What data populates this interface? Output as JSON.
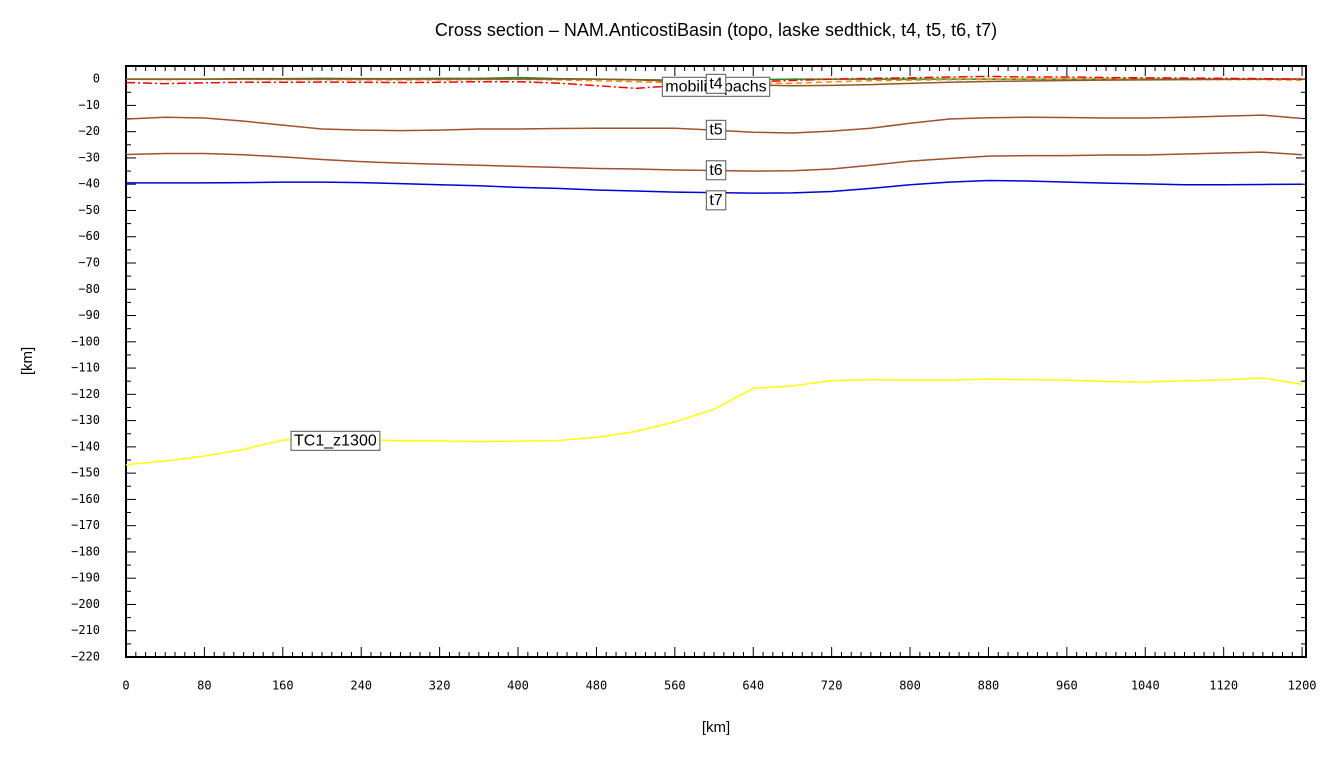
{
  "chart_data": {
    "type": "line",
    "title": "Cross section – NAM.AnticostiBasin (topo, laske sedthick, t4, t5, t6, t7)",
    "xlabel": "[km]",
    "ylabel": "[km]",
    "x": [
      0,
      40,
      80,
      120,
      160,
      200,
      240,
      280,
      320,
      360,
      400,
      440,
      480,
      520,
      560,
      600,
      640,
      680,
      720,
      760,
      800,
      840,
      880,
      920,
      960,
      1000,
      1040,
      1080,
      1120,
      1160,
      1200
    ],
    "xlim": [
      0,
      1204
    ],
    "ylim": [
      -220,
      5
    ],
    "xticks": [
      0,
      80,
      160,
      240,
      320,
      400,
      480,
      560,
      640,
      720,
      800,
      880,
      960,
      1040,
      1120,
      1200
    ],
    "yticks": [
      0,
      {
        "value": -10,
        "label": "−10"
      },
      {
        "value": -20,
        "label": "−20"
      },
      {
        "value": -30,
        "label": "−30"
      },
      {
        "value": -40,
        "label": "−40"
      },
      {
        "value": -50,
        "label": "−50"
      },
      {
        "value": -60,
        "label": "−60"
      },
      {
        "value": -70,
        "label": "−70"
      },
      {
        "value": -80,
        "label": "−80"
      },
      {
        "value": -90,
        "label": "−90"
      },
      {
        "value": -100,
        "label": "−100"
      },
      {
        "value": -110,
        "label": "−110"
      },
      {
        "value": -120,
        "label": "−120"
      },
      {
        "value": -130,
        "label": "−130"
      },
      {
        "value": -140,
        "label": "−140"
      },
      {
        "value": -150,
        "label": "−150"
      },
      {
        "value": -160,
        "label": "−160"
      },
      {
        "value": -170,
        "label": "−170"
      },
      {
        "value": -180,
        "label": "−180"
      },
      {
        "value": -190,
        "label": "−190"
      },
      {
        "value": -200,
        "label": "−200"
      },
      {
        "value": -210,
        "label": "−210"
      },
      {
        "value": -220,
        "label": "−220"
      }
    ],
    "series": [
      {
        "color": "#228b22",
        "values": [
          0,
          0,
          0,
          0.2,
          0.2,
          0.3,
          0.2,
          0.2,
          0.3,
          0.3,
          0.6,
          0.2,
          0,
          -0.2,
          -0.4,
          -0.4,
          -0.2,
          0,
          0,
          0,
          0,
          0,
          0,
          0,
          0,
          0,
          0,
          0,
          0,
          0,
          0
        ]
      },
      {
        "color": "#ff8c00",
        "dash": "6,4",
        "values": [
          0,
          -0.2,
          0,
          -0.1,
          -0.2,
          -0.2,
          -0.3,
          -0.3,
          -0.3,
          -0.2,
          -0.1,
          -0.3,
          -0.6,
          -1,
          -1.3,
          -1.2,
          -1.4,
          -1.6,
          -1,
          -0.6,
          -0.4,
          -0.2,
          -0.1,
          0,
          0,
          0,
          -0.1,
          -0.2,
          -0.2,
          -0.2,
          -0.4
        ]
      },
      {
        "name": "mobilisepachs",
        "color": "#8b5a2b",
        "values": [
          0,
          0,
          0,
          0,
          0,
          0,
          0,
          0,
          0,
          0,
          0,
          0,
          0,
          -0.3,
          -0.8,
          -1.5,
          -2.2,
          -2.5,
          -2.4,
          -2.1,
          -1.6,
          -1.2,
          -0.9,
          -0.7,
          -0.5,
          -0.4,
          -0.3,
          -0.2,
          -0.1,
          0,
          0
        ]
      },
      {
        "name": "t4",
        "color": "#ff0000",
        "dash": "9,3,2,3",
        "values": [
          -1.3,
          -1.7,
          -1.4,
          -1.2,
          -1.2,
          -1.1,
          -1.2,
          -1.3,
          -1.2,
          -1,
          -1,
          -1.5,
          -2.5,
          -3.5,
          -2.5,
          -1.5,
          -1,
          -0.5,
          0,
          0.3,
          0.5,
          0.8,
          1,
          0.8,
          0.8,
          0.6,
          0.5,
          0.4,
          0.3,
          0.2,
          0
        ]
      },
      {
        "name": "t5",
        "color": "#a0522d",
        "values": [
          -15.2,
          -14.5,
          -14.8,
          -16,
          -17.5,
          -19,
          -19.4,
          -19.6,
          -19.4,
          -19,
          -19,
          -18.8,
          -18.7,
          -18.7,
          -18.7,
          -19.4,
          -20.2,
          -20.5,
          -19.8,
          -18.7,
          -16.8,
          -15.2,
          -14.7,
          -14.5,
          -14.6,
          -14.8,
          -14.8,
          -14.5,
          -14.1,
          -13.7,
          -15
        ]
      },
      {
        "name": "t6",
        "color": "#a0522d",
        "values": [
          -28.7,
          -28.3,
          -28.3,
          -28.8,
          -29.6,
          -30.6,
          -31.4,
          -32,
          -32.4,
          -32.8,
          -33.2,
          -33.6,
          -34,
          -34.2,
          -34.6,
          -34.8,
          -35,
          -34.9,
          -34.2,
          -32.8,
          -31.2,
          -30.2,
          -29.3,
          -29.1,
          -29.1,
          -28.9,
          -28.9,
          -28.5,
          -28.1,
          -27.8,
          -28.8
        ]
      },
      {
        "name": "t7",
        "color": "#0000dd",
        "values": [
          -39.5,
          -39.5,
          -39.5,
          -39.4,
          -39.2,
          -39.2,
          -39.4,
          -39.8,
          -40.2,
          -40.6,
          -41.2,
          -41.6,
          -42.2,
          -42.6,
          -43,
          -43.2,
          -43.4,
          -43.3,
          -42.8,
          -41.6,
          -40.2,
          -39.2,
          -38.6,
          -38.8,
          -39.2,
          -39.6,
          -39.9,
          -40.2,
          -40.2,
          -40.1,
          -40
        ]
      },
      {
        "name": "TC1_z1300",
        "color": "#ffff00",
        "values": [
          -146.8,
          -145.4,
          -143.5,
          -141,
          -137.4,
          -137.2,
          -137.4,
          -137.6,
          -137.7,
          -138,
          -137.8,
          -137.6,
          -136.4,
          -134.2,
          -130.5,
          -125.7,
          -117.7,
          -116.8,
          -114.8,
          -114.4,
          -114.6,
          -114.6,
          -114.2,
          -114.4,
          -114.6,
          -115.1,
          -115.3,
          -114.9,
          -114.5,
          -113.8,
          -116.2
        ]
      }
    ]
  }
}
